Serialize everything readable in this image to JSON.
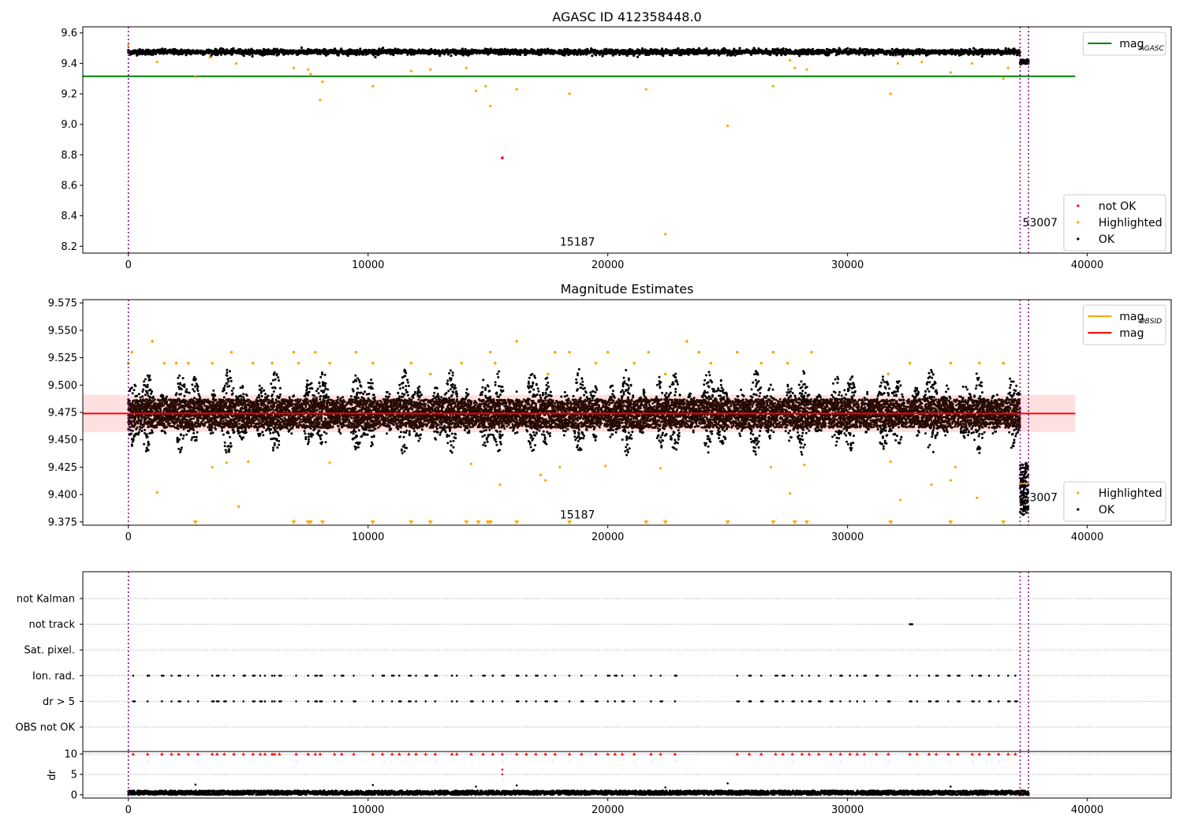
{
  "chart_data": [
    {
      "panel": "agasc_mag",
      "type": "scatter",
      "title": "AGASC ID 412358448.0",
      "xlim": [
        -1900,
        43500
      ],
      "ylim": [
        8.155,
        9.64
      ],
      "xticks": [
        0,
        10000,
        20000,
        30000,
        40000
      ],
      "yticks": [
        8.2,
        8.4,
        8.6,
        8.8,
        9.0,
        9.2,
        9.4,
        9.6
      ],
      "ytick_labels": [
        "8.2",
        "8.4",
        "8.6",
        "8.8",
        "9.0",
        "9.2",
        "9.4",
        "9.6"
      ],
      "hline": {
        "name": "mag",
        "subscript": "AGASC",
        "y": 9.315,
        "x_range": [
          -1900,
          39500
        ],
        "color": "#008000"
      },
      "vlines": [
        0,
        37200,
        37550
      ],
      "vline_color": "#800080",
      "ok_band": {
        "center": 9.475,
        "halfwidth": 0.017,
        "x_range": [
          0,
          37200
        ]
      },
      "tail_band": {
        "center": 9.41,
        "halfwidth": 0.015,
        "x_range": [
          37200,
          37550
        ]
      },
      "highlighted_points": [
        [
          0,
          9.52
        ],
        [
          2800,
          9.31
        ],
        [
          1200,
          9.41
        ],
        [
          3400,
          9.44
        ],
        [
          4500,
          9.4
        ],
        [
          6900,
          9.37
        ],
        [
          7500,
          9.36
        ],
        [
          7600,
          9.33
        ],
        [
          8100,
          9.28
        ],
        [
          8000,
          9.16
        ],
        [
          10200,
          9.25
        ],
        [
          11800,
          9.35
        ],
        [
          12600,
          9.36
        ],
        [
          14100,
          9.37
        ],
        [
          14500,
          9.22
        ],
        [
          14900,
          9.25
        ],
        [
          15100,
          9.12
        ],
        [
          16200,
          9.23
        ],
        [
          18400,
          9.2
        ],
        [
          21600,
          9.23
        ],
        [
          22400,
          8.28
        ],
        [
          25000,
          8.99
        ],
        [
          26900,
          9.25
        ],
        [
          27600,
          9.42
        ],
        [
          27800,
          9.37
        ],
        [
          28300,
          9.36
        ],
        [
          31800,
          9.2
        ],
        [
          32100,
          9.4
        ],
        [
          33100,
          9.41
        ],
        [
          34300,
          9.34
        ],
        [
          35200,
          9.4
        ],
        [
          36500,
          9.3
        ],
        [
          36700,
          9.37
        ]
      ],
      "not_ok_points": [
        [
          15600,
          8.78
        ]
      ],
      "annotations": [
        {
          "text": "15187",
          "x": 18000,
          "y": 8.205
        },
        {
          "text": "53007",
          "x": 37300,
          "y": 8.33
        }
      ],
      "legends": [
        {
          "entries": [
            {
              "label": "mag",
              "sub": "AGASC",
              "kind": "line",
              "color": "#008000"
            }
          ]
        },
        {
          "entries": [
            {
              "label": "not OK",
              "kind": "dot",
              "color": "#ff0000"
            },
            {
              "label": "Highlighted",
              "kind": "dot",
              "color": "#ffa500"
            },
            {
              "label": "OK",
              "kind": "dot",
              "color": "#000000"
            }
          ]
        }
      ]
    },
    {
      "panel": "mag_estimates",
      "type": "scatter",
      "title": "Magnitude Estimates",
      "xlim": [
        -1900,
        43500
      ],
      "ylim": [
        9.372,
        9.578
      ],
      "xticks": [
        0,
        10000,
        20000,
        30000,
        40000
      ],
      "yticks": [
        9.375,
        9.4,
        9.425,
        9.45,
        9.475,
        9.5,
        9.525,
        9.55,
        9.575
      ],
      "ytick_labels": [
        "9.375",
        "9.400",
        "9.425",
        "9.450",
        "9.475",
        "9.500",
        "9.525",
        "9.550",
        "9.575"
      ],
      "mag_line": {
        "name": "mag",
        "y": 9.474,
        "x_range": [
          -1900,
          39500
        ],
        "color": "#ff0000",
        "band": [
          9.457,
          9.491
        ]
      },
      "obsid_segment": {
        "name": "mag",
        "subscript": "OBSID",
        "y": 9.41,
        "x_range": [
          37150,
          37550
        ],
        "color": "#ffa500"
      },
      "vlines": [
        0,
        37200,
        37550
      ],
      "ok_band": {
        "core_center": 9.474,
        "core_halfwidth": 0.013,
        "spread_hi": 9.516,
        "spread_lo": 9.435,
        "x_range": [
          0,
          37200
        ]
      },
      "tail_band": {
        "center": 9.405,
        "halfwidth": 0.02,
        "x_range": [
          37200,
          37550
        ]
      },
      "highlighted_top": [
        [
          0,
          9.52
        ],
        [
          150,
          9.53
        ],
        [
          1000,
          9.54
        ],
        [
          1500,
          9.52
        ],
        [
          2000,
          9.52
        ],
        [
          2500,
          9.52
        ],
        [
          3500,
          9.52
        ],
        [
          4300,
          9.53
        ],
        [
          5200,
          9.52
        ],
        [
          6000,
          9.52
        ],
        [
          6900,
          9.53
        ],
        [
          7100,
          9.52
        ],
        [
          7800,
          9.53
        ],
        [
          8400,
          9.52
        ],
        [
          9500,
          9.53
        ],
        [
          10200,
          9.52
        ],
        [
          11800,
          9.52
        ],
        [
          12600,
          9.51
        ],
        [
          13900,
          9.52
        ],
        [
          15100,
          9.53
        ],
        [
          15300,
          9.52
        ],
        [
          16200,
          9.54
        ],
        [
          17500,
          9.51
        ],
        [
          17800,
          9.53
        ],
        [
          18400,
          9.53
        ],
        [
          19500,
          9.52
        ],
        [
          20000,
          9.53
        ],
        [
          21100,
          9.52
        ],
        [
          21700,
          9.53
        ],
        [
          22400,
          9.51
        ],
        [
          23300,
          9.54
        ],
        [
          23800,
          9.53
        ],
        [
          24300,
          9.52
        ],
        [
          25400,
          9.53
        ],
        [
          26400,
          9.52
        ],
        [
          26900,
          9.53
        ],
        [
          27500,
          9.52
        ],
        [
          28500,
          9.53
        ],
        [
          31700,
          9.51
        ],
        [
          32600,
          9.52
        ],
        [
          34300,
          9.52
        ],
        [
          35500,
          9.52
        ],
        [
          36500,
          9.52
        ]
      ],
      "highlighted_low": [
        [
          1200,
          9.402
        ],
        [
          3500,
          9.425
        ],
        [
          4100,
          9.429
        ],
        [
          4600,
          9.389
        ],
        [
          5000,
          9.43
        ],
        [
          8400,
          9.429
        ],
        [
          14300,
          9.428
        ],
        [
          15500,
          9.409
        ],
        [
          17200,
          9.418
        ],
        [
          17400,
          9.413
        ],
        [
          18000,
          9.425
        ],
        [
          19900,
          9.426
        ],
        [
          22200,
          9.424
        ],
        [
          26800,
          9.425
        ],
        [
          27600,
          9.401
        ],
        [
          28200,
          9.427
        ],
        [
          31800,
          9.43
        ],
        [
          32200,
          9.395
        ],
        [
          33500,
          9.409
        ],
        [
          34300,
          9.413
        ],
        [
          34500,
          9.425
        ],
        [
          35400,
          9.397
        ]
      ],
      "clipped_x": [
        2800,
        6900,
        7500,
        7600,
        8100,
        10200,
        11800,
        12600,
        14100,
        14600,
        15000,
        15100,
        16200,
        18400,
        21600,
        22400,
        25000,
        26900,
        27800,
        28300,
        31800,
        34300,
        36500
      ],
      "annotations": [
        {
          "text": "15187",
          "x": 18000,
          "y": 9.378
        },
        {
          "text": "53007",
          "x": 37300,
          "y": 9.394
        }
      ],
      "legends": [
        {
          "entries": [
            {
              "label": "mag",
              "sub": "OBSID",
              "kind": "line",
              "color": "#ffa500"
            },
            {
              "label": "mag",
              "kind": "line",
              "color": "#ff0000"
            }
          ]
        },
        {
          "entries": [
            {
              "label": "Highlighted",
              "kind": "dot",
              "color": "#ffa500"
            },
            {
              "label": "OK",
              "kind": "dot",
              "color": "#000000"
            }
          ]
        }
      ]
    },
    {
      "panel": "flags",
      "type": "scatter",
      "xlim": [
        -1900,
        43500
      ],
      "categories": [
        "not Kalman",
        "not track",
        "Sat. pixel.",
        "Ion. rad.",
        "dr > 5",
        "OBS not OK"
      ],
      "vlines": [
        0,
        37200,
        37550
      ],
      "flag_x": [
        200,
        800,
        1400,
        1800,
        2100,
        2500,
        2900,
        3500,
        3700,
        4000,
        4400,
        4800,
        5200,
        5500,
        5700,
        6000,
        6100,
        6300,
        7000,
        7500,
        7800,
        8000,
        8600,
        8900,
        9400,
        10200,
        10600,
        11000,
        11300,
        11700,
        12000,
        12400,
        12800,
        13500,
        13700,
        14300,
        14800,
        15200,
        15600,
        16200,
        16600,
        17000,
        17400,
        17800,
        18400,
        18900,
        19500,
        20000,
        20300,
        20600,
        21100,
        21800,
        22200,
        22800,
        25400,
        25900,
        26400,
        27000,
        27300,
        27700,
        28100,
        28400,
        28800,
        29300,
        29700,
        30100,
        30400,
        30700,
        31200,
        31700,
        32600,
        32900,
        33400,
        33700,
        34200,
        34600,
        35200,
        35500,
        35900,
        36300,
        36700,
        37000
      ],
      "not_track": {
        "x": [
          32600,
          32650,
          32700
        ],
        "y": "not track"
      }
    },
    {
      "panel": "dr",
      "type": "scatter",
      "xlim": [
        -1900,
        43500
      ],
      "ylim": [
        -0.8,
        10.6
      ],
      "ylabel": "dr",
      "yticks": [
        0,
        5,
        10
      ],
      "ytick_labels": [
        "0",
        "5",
        "10"
      ],
      "xticks": [
        0,
        10000,
        20000,
        30000,
        40000
      ],
      "vlines": [
        0,
        37200,
        37550
      ],
      "base_band": [
        0,
        1
      ],
      "clipped_value": 10,
      "extra_points": [
        [
          2800,
          2.5
        ],
        [
          10200,
          2.4
        ],
        [
          14500,
          2.0
        ],
        [
          15600,
          6.2
        ],
        [
          15600,
          5.0
        ],
        [
          16200,
          2.3
        ],
        [
          22400,
          1.8
        ],
        [
          25000,
          2.8
        ],
        [
          34300,
          2.0
        ]
      ]
    }
  ]
}
